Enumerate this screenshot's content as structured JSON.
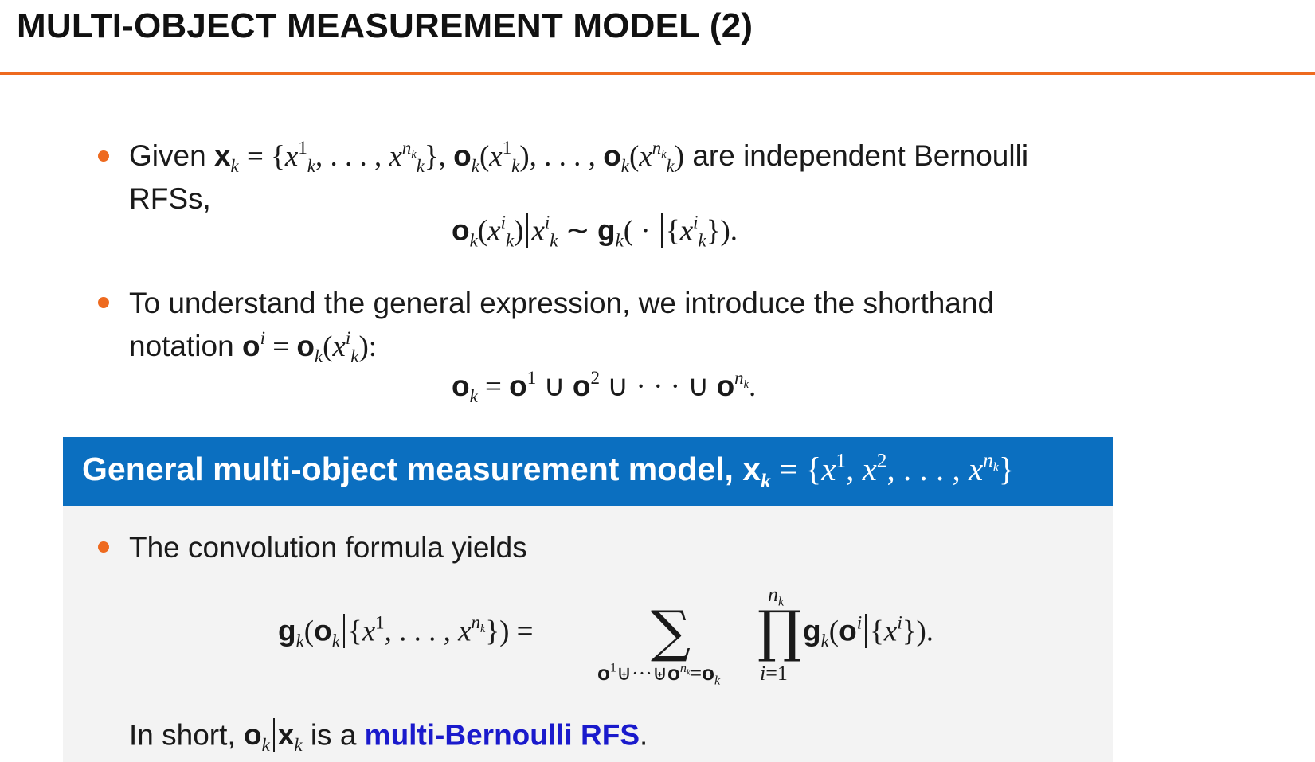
{
  "slide": {
    "title": "MULTI-OBJECT MEASUREMENT MODEL (2)"
  },
  "bullets": [
    {
      "text_given": "Given",
      "text_independent": "are independent Bernoulli",
      "text_rfss": "RFSs,"
    },
    {
      "text_line1": "To understand the general expression, we introduce the shorthand",
      "text_notation": "notation"
    }
  ],
  "block": {
    "title_text": "General multi-object measurement model,",
    "bullet_text": "The convolution formula yields",
    "short_prefix": "In short,",
    "short_is_a": "is a",
    "link_text": "multi-Bernoulli RFS",
    "period": "."
  },
  "colors": {
    "accent_orange": "#ee6a1f",
    "block_header_blue": "#0b6fc0",
    "block_body_gray": "#f3f3f3",
    "link_blue": "#1a1acc"
  }
}
